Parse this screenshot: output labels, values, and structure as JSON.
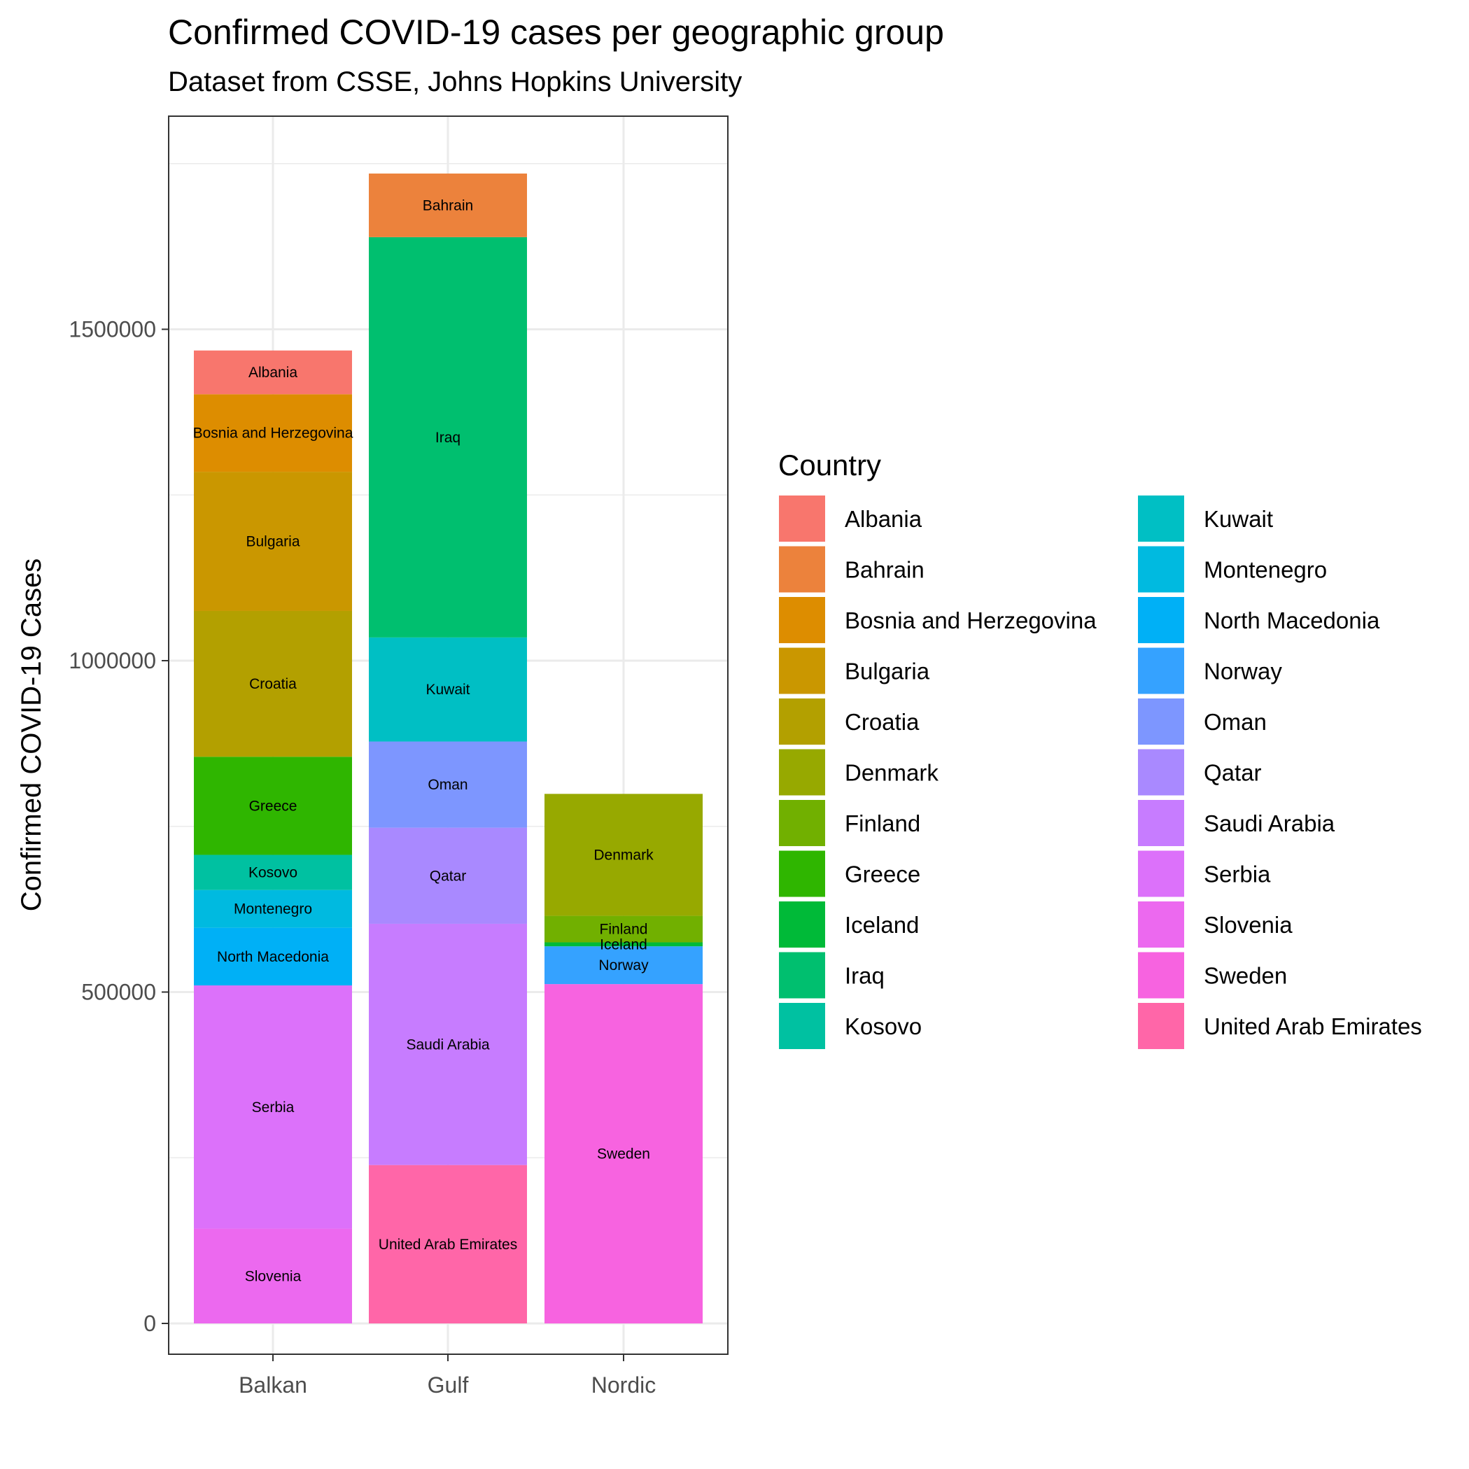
{
  "chart_data": {
    "type": "bar",
    "stacked": true,
    "title": "Confirmed COVID-19 cases per geographic group",
    "subtitle": "Dataset from CSSE, Johns Hopkins University",
    "xlabel": "",
    "ylabel": "Confirmed COVID-19 Cases",
    "ylim": [
      -80000,
      1830000
    ],
    "yticks": [
      0,
      500000,
      1000000,
      1500000
    ],
    "ytick_labels": [
      "0",
      "500000",
      "1000000",
      "1500000"
    ],
    "grid": true,
    "legend_title": "Country",
    "legend_position": "right",
    "categories": [
      "Balkan",
      "Gulf",
      "Nordic"
    ],
    "groups": [
      {
        "category": "Balkan",
        "segments": [
          {
            "country": "Slovenia",
            "value": 143000
          },
          {
            "country": "Serbia",
            "value": 367000
          },
          {
            "country": "North Macedonia",
            "value": 87000
          },
          {
            "country": "Montenegro",
            "value": 57000
          },
          {
            "country": "Kosovo",
            "value": 53000
          },
          {
            "country": "Greece",
            "value": 148000
          },
          {
            "country": "Croatia",
            "value": 220000
          },
          {
            "country": "Bulgaria",
            "value": 210000
          },
          {
            "country": "Bosnia and Herzegovina",
            "value": 117000
          },
          {
            "country": "Albania",
            "value": 66000
          }
        ]
      },
      {
        "category": "Gulf",
        "segments": [
          {
            "country": "United Arab Emirates",
            "value": 239000
          },
          {
            "country": "Saudi Arabia",
            "value": 364000
          },
          {
            "country": "Qatar",
            "value": 145000
          },
          {
            "country": "Oman",
            "value": 130000
          },
          {
            "country": "Kuwait",
            "value": 157000
          },
          {
            "country": "Iraq",
            "value": 604000
          },
          {
            "country": "Bahrain",
            "value": 96000
          }
        ]
      },
      {
        "category": "Nordic",
        "segments": [
          {
            "country": "Sweden",
            "value": 512000
          },
          {
            "country": "Norway",
            "value": 57000
          },
          {
            "country": "Iceland",
            "value": 6000
          },
          {
            "country": "Finland",
            "value": 40000
          },
          {
            "country": "Denmark",
            "value": 184000
          }
        ]
      }
    ],
    "legend": [
      {
        "name": "Albania",
        "color": "#F8766D"
      },
      {
        "name": "Bahrain",
        "color": "#EC823C"
      },
      {
        "name": "Bosnia and Herzegovina",
        "color": "#DD8D00"
      },
      {
        "name": "Bulgaria",
        "color": "#CA9700"
      },
      {
        "name": "Croatia",
        "color": "#B3A000"
      },
      {
        "name": "Denmark",
        "color": "#97A900"
      },
      {
        "name": "Finland",
        "color": "#71B000"
      },
      {
        "name": "Greece",
        "color": "#2FB600"
      },
      {
        "name": "Iceland",
        "color": "#00BA38"
      },
      {
        "name": "Iraq",
        "color": "#00BF6F"
      },
      {
        "name": "Kosovo",
        "color": "#00C1A1"
      },
      {
        "name": "Kuwait",
        "color": "#00BFC4"
      },
      {
        "name": "Montenegro",
        "color": "#00BAE0"
      },
      {
        "name": "North Macedonia",
        "color": "#00B0F6"
      },
      {
        "name": "Norway",
        "color": "#35A2FF"
      },
      {
        "name": "Oman",
        "color": "#7D96FF"
      },
      {
        "name": "Qatar",
        "color": "#A989FF"
      },
      {
        "name": "Saudi Arabia",
        "color": "#C77CFF"
      },
      {
        "name": "Serbia",
        "color": "#DC71FA"
      },
      {
        "name": "Slovenia",
        "color": "#EC69EF"
      },
      {
        "name": "Sweden",
        "color": "#F763E0"
      },
      {
        "name": "United Arab Emirates",
        "color": "#FF66A8"
      }
    ]
  }
}
